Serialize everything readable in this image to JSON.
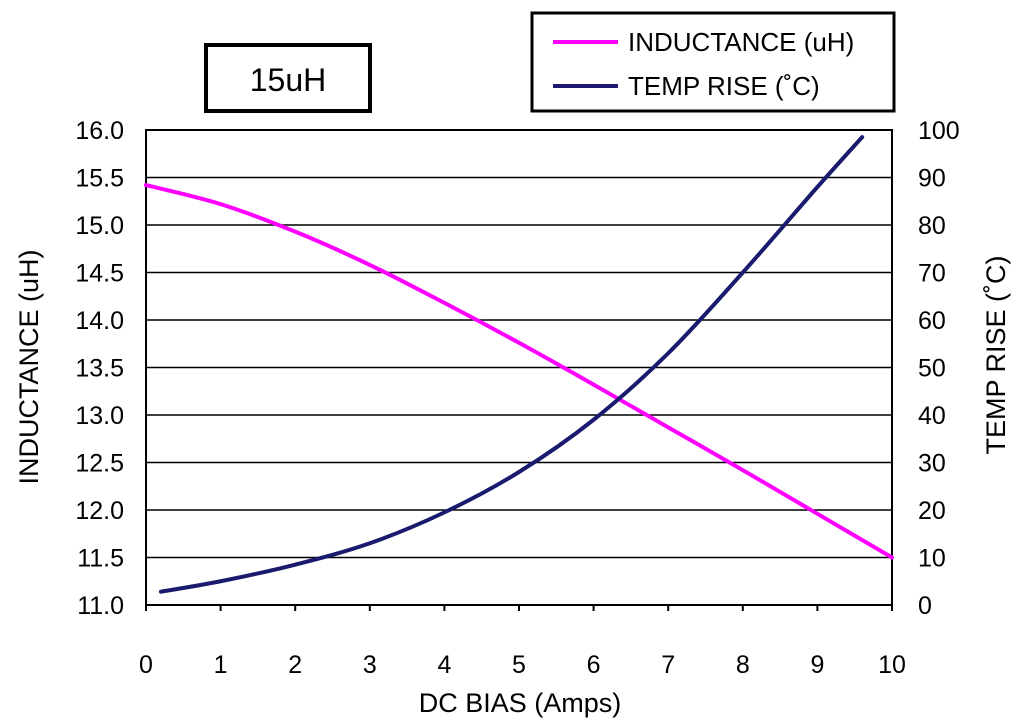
{
  "chart_data": {
    "type": "line",
    "tag_label": "15uH",
    "xlabel": "DC BIAS (Amps)",
    "ylabel_left": "INDUCTANCE (uH)",
    "ylabel_right": "TEMP RISE (˚C)",
    "xlim": [
      0,
      10
    ],
    "ylim_left": [
      11.0,
      16.0
    ],
    "ylim_right": [
      0,
      100
    ],
    "x_ticks": [
      "0",
      "1",
      "2",
      "3",
      "4",
      "5",
      "6",
      "7",
      "8",
      "9",
      "10"
    ],
    "y_left_ticks": [
      "11.0",
      "11.5",
      "12.0",
      "12.5",
      "13.0",
      "13.5",
      "14.0",
      "14.5",
      "15.0",
      "15.5",
      "16.0"
    ],
    "y_right_ticks": [
      "0",
      "10",
      "20",
      "30",
      "40",
      "50",
      "60",
      "70",
      "80",
      "90",
      "100"
    ],
    "grid": "horizontal",
    "legend_position": "top-right",
    "series": [
      {
        "name": "INDUCTANCE (uH)",
        "axis": "left",
        "color": "#ff00ff",
        "points": [
          [
            0,
            15.42
          ],
          [
            1,
            15.22
          ],
          [
            2,
            14.93
          ],
          [
            3,
            14.58
          ],
          [
            4,
            14.18
          ],
          [
            5,
            13.76
          ],
          [
            6,
            13.32
          ],
          [
            7,
            12.87
          ],
          [
            8,
            12.42
          ],
          [
            9,
            11.96
          ],
          [
            10,
            11.5
          ]
        ]
      },
      {
        "name": "TEMP RISE (˚C)",
        "axis": "right",
        "color": "#1a1a6e",
        "points": [
          [
            0.2,
            2.8
          ],
          [
            1,
            5
          ],
          [
            2,
            8.5
          ],
          [
            3,
            13
          ],
          [
            4,
            19.5
          ],
          [
            5,
            28
          ],
          [
            6,
            39
          ],
          [
            7,
            53
          ],
          [
            8,
            70
          ],
          [
            9,
            88
          ],
          [
            9.6,
            98.5
          ]
        ]
      }
    ]
  }
}
